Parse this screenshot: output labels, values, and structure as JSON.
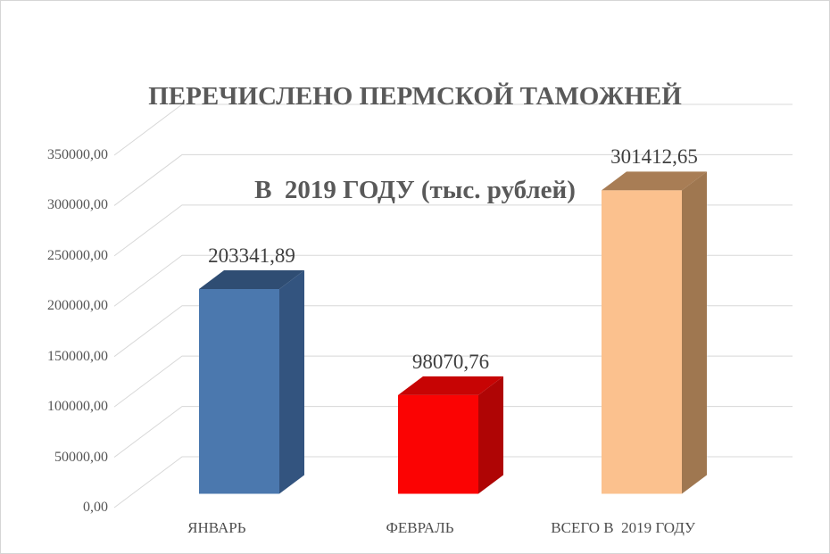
{
  "title": {
    "line1": "ПЕРЕЧИСЛЕНО ПЕРМСКОЙ ТАМОЖНЕЙ",
    "line2": "В  2019 ГОДУ (тыс. рублей)"
  },
  "chart_data": {
    "type": "bar",
    "projection": "3d",
    "title": "ПЕРЕЧИСЛЕНО ПЕРМСКОЙ ТАМОЖНЕЙ В 2019 ГОДУ (тыс. рублей)",
    "categories": [
      "ЯНВАРЬ",
      "ФЕВРАЛЬ",
      "ВСЕГО В  2019 ГОДУ"
    ],
    "values": [
      203341.89,
      98070.76,
      301412.65
    ],
    "data_labels": [
      "203341,89",
      "98070,76",
      "301412,65"
    ],
    "bar_colors": [
      {
        "front": "#4B78AE",
        "top": "#2F4D73",
        "side": "#33547F"
      },
      {
        "front": "#FB0303",
        "top": "#C70404",
        "side": "#AF0505"
      },
      {
        "front": "#FBC18E",
        "top": "#A87D55",
        "side": "#9F7750"
      }
    ],
    "xlabel": "",
    "ylabel": "",
    "ylim": [
      0,
      350000
    ],
    "ytick_step": 50000,
    "ytick_labels": [
      "0,00",
      "50000,00",
      "100000,00",
      "150000,00",
      "200000,00",
      "250000,00",
      "300000,00",
      "350000,00"
    ],
    "grid": true,
    "legend": "none"
  },
  "colors": {
    "background": "#FFFFFF",
    "border": "#D6D6D6",
    "gridline": "#D8D8D8",
    "title_text": "#595959",
    "axis_text": "#555555",
    "category_text": "#4F4F4F",
    "data_label_text": "#3F3F3F"
  }
}
